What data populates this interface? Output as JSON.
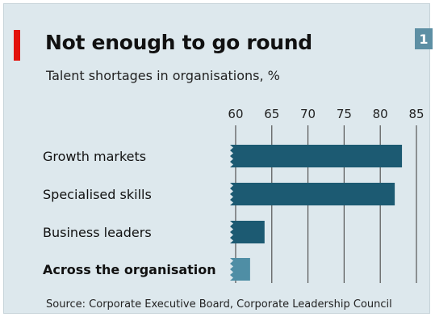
{
  "badge": "1",
  "chart_data": {
    "type": "bar",
    "orientation": "horizontal",
    "title": "Not enough to go round",
    "subtitle": "Talent shortages in organisations, %",
    "categories": [
      "Growth markets",
      "Specialised skills",
      "Business leaders",
      "Across the organisation"
    ],
    "values": [
      83,
      82,
      64,
      62
    ],
    "category_emphasis": [
      false,
      false,
      false,
      true
    ],
    "xticks": [
      60,
      65,
      70,
      75,
      80,
      85
    ],
    "xlim": [
      59,
      85
    ],
    "x_axis_break": true,
    "grid": true,
    "source": "Source: Corporate Executive Board, Corporate Leadership Council",
    "colors": {
      "bar": "#1c5a72",
      "bar_highlight": "#4f8ea5",
      "grid": "#555555",
      "background": "#dde8ed",
      "accent": "#e3120b"
    }
  }
}
